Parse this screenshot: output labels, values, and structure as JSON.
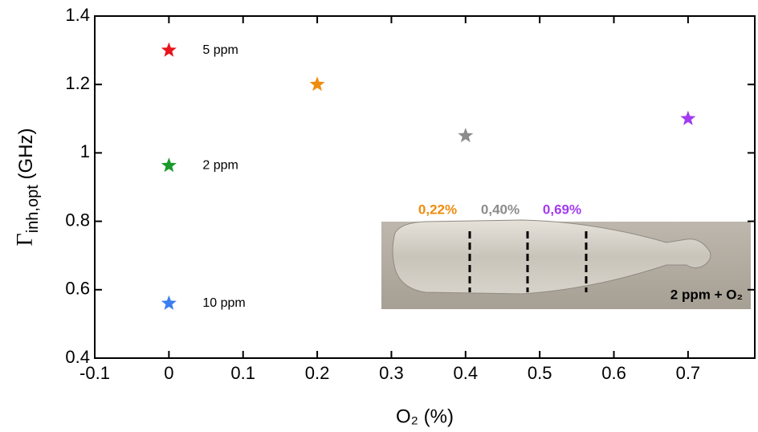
{
  "chart_data": {
    "type": "scatter",
    "x_label": "O₂ (%)",
    "y_label": "Γinh,opt (GHz)",
    "inset_label": "2 ppm + O₂",
    "xlim": [
      -0.1,
      0.79
    ],
    "ylim": [
      0.4,
      1.4
    ],
    "xticks": [
      -0.1,
      0,
      0.1,
      0.2,
      0.3,
      0.4,
      0.5,
      0.6,
      0.7
    ],
    "yticks": [
      0.4,
      0.6,
      0.8,
      1,
      1.2,
      1.4
    ],
    "series": [
      {
        "name": "5 ppm",
        "color": "#e8141c",
        "x": [
          0
        ],
        "values": [
          1.3
        ],
        "label_at": "point"
      },
      {
        "name": "2 ppm",
        "color": "#1a9a2a",
        "x": [
          0
        ],
        "values": [
          0.963
        ],
        "label_at": "point"
      },
      {
        "name": "10 ppm",
        "color": "#3a7ef0",
        "x": [
          0
        ],
        "values": [
          0.56
        ],
        "label_at": "point"
      },
      {
        "name": "0,22%",
        "color": "#ef8c0f",
        "x": [
          0.2
        ],
        "values": [
          1.2
        ],
        "label_at": "inset"
      },
      {
        "name": "0,40%",
        "color": "#8c8c8c",
        "x": [
          0.4
        ],
        "values": [
          1.05
        ],
        "label_at": "inset"
      },
      {
        "name": "0,69%",
        "color": "#a23cf0",
        "x": [
          0.7
        ],
        "values": [
          1.1
        ],
        "label_at": "inset"
      }
    ]
  }
}
